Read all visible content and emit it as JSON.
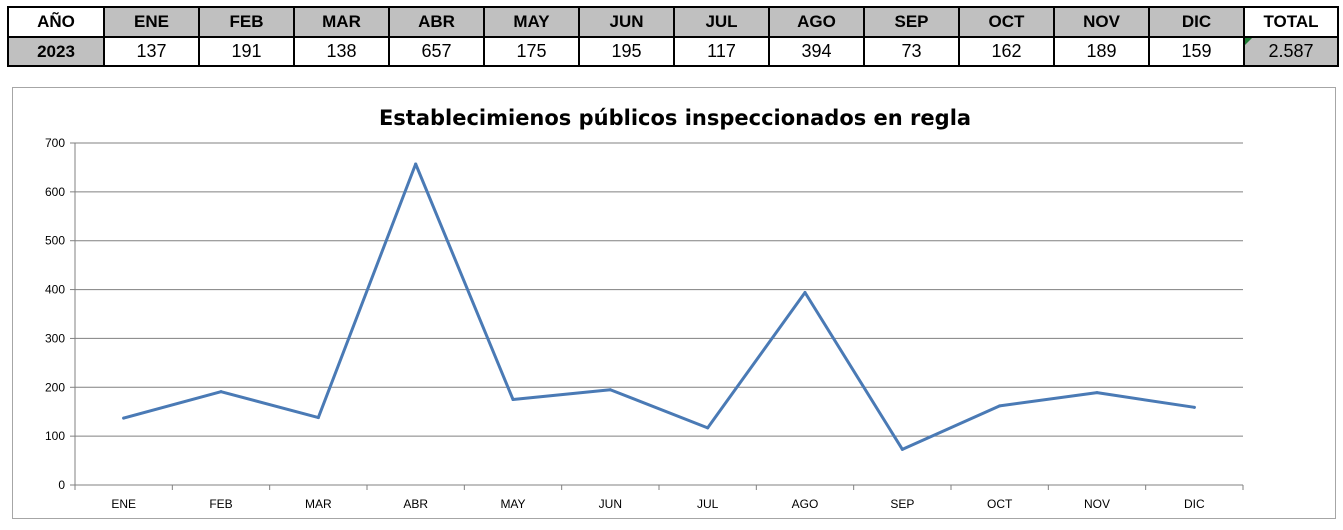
{
  "table": {
    "header": {
      "year_label": "AÑO",
      "months": [
        "ENE",
        "FEB",
        "MAR",
        "ABR",
        "MAY",
        "JUN",
        "JUL",
        "AGO",
        "SEP",
        "OCT",
        "NOV",
        "DIC"
      ],
      "total_label": "TOTAL"
    },
    "row": {
      "year": "2023",
      "values": [
        "137",
        "191",
        "138",
        "657",
        "175",
        "195",
        "117",
        "394",
        "73",
        "162",
        "189",
        "159"
      ],
      "total": "2.587"
    }
  },
  "chart_data": {
    "type": "line",
    "title": "Establecimienos públicos inspeccionados en regla",
    "categories": [
      "ENE",
      "FEB",
      "MAR",
      "ABR",
      "MAY",
      "JUN",
      "JUL",
      "AGO",
      "SEP",
      "OCT",
      "NOV",
      "DIC"
    ],
    "series": [
      {
        "values": [
          137,
          191,
          138,
          657,
          175,
          195,
          117,
          394,
          73,
          162,
          189,
          159
        ],
        "color": "#4a7ab5"
      }
    ],
    "ylim": [
      0,
      700
    ],
    "yticks": [
      0,
      100,
      200,
      300,
      400,
      500,
      600,
      700
    ],
    "grid": true,
    "legend": "none"
  },
  "colors": {
    "line": "#4a7ab5",
    "grid": "#808080",
    "header_fill": "#c0c0c0",
    "total_marker": "#1e7b34"
  }
}
